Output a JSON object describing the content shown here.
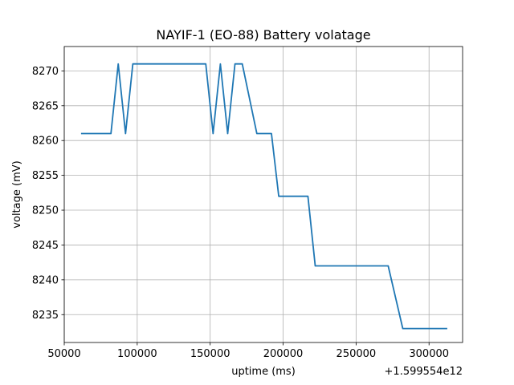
{
  "chart_data": {
    "type": "line",
    "title": "NAYIF-1 (EO-88) Battery volatage",
    "xlabel": "uptime (ms)",
    "ylabel": "voltage (mV)",
    "x_offset_label": "+1.599554e12",
    "xlim": [
      50000,
      323000
    ],
    "ylim": [
      8231,
      8273.5
    ],
    "grid": true,
    "x_ticks": [
      50000,
      100000,
      150000,
      200000,
      250000,
      300000
    ],
    "y_ticks": [
      8235,
      8240,
      8245,
      8250,
      8255,
      8260,
      8265,
      8270
    ],
    "series": [
      {
        "color": "#1f77b4",
        "x": [
          62000,
          82000,
          87000,
          92000,
          97000,
          147000,
          152000,
          157000,
          162000,
          167000,
          172000,
          182000,
          192000,
          197000,
          217000,
          222000,
          272000,
          282000,
          312000
        ],
        "y": [
          8261,
          8261,
          8271,
          8261,
          8271,
          8271,
          8261,
          8271,
          8261,
          8271,
          8271,
          8261,
          8261,
          8252,
          8252,
          8242,
          8242,
          8233,
          8233
        ]
      }
    ]
  }
}
